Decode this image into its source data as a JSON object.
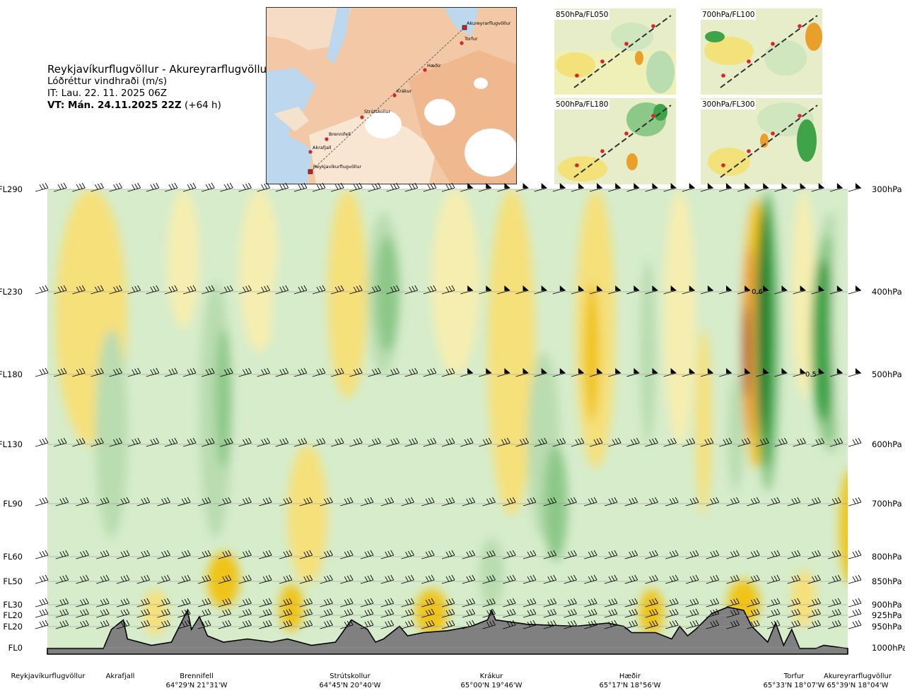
{
  "header": {
    "route": "Reykjavíkurflugvöllur - Akureyrarflugvöllur",
    "variable": "Lóðréttur vindhraði (m/s)",
    "issue_time": "IT: Lau. 22. 11. 2025 06Z",
    "valid_time": "VT: Mán. 24.11.2025 22Z",
    "lead_time": "(+64 h)"
  },
  "map": {
    "stations": [
      "Akureyrarflugvöllur",
      "Torfur",
      "Hæðir",
      "Krákur",
      "Strútskollur",
      "Brennifell",
      "Akrafjall",
      "Reykjavíkurflugvöllur"
    ]
  },
  "thumbnails": [
    {
      "label": "850hPa/FL050"
    },
    {
      "label": "700hPa/FL100"
    },
    {
      "label": "500hPa/FL180"
    },
    {
      "label": "300hPa/FL300"
    }
  ],
  "chart_data": {
    "type": "heatmap",
    "title": "Reykjavíkurflugvöllur - Akureyrarflugvöllur",
    "subtitle": "Lóðréttur vindhraði (m/s)",
    "x": [
      0,
      0.084,
      0.19,
      0.38,
      0.55,
      0.74,
      0.96,
      1.0
    ],
    "x_note": "fraction of route distance",
    "waypoints": [
      {
        "name": "Reykjavíkurflugvöllur",
        "coord": "",
        "x": 0.0
      },
      {
        "name": "Akrafjall",
        "coord": "",
        "x": 0.084
      },
      {
        "name": "Brennifell",
        "coord": "64°29'N 21°31'W",
        "x": 0.19
      },
      {
        "name": "Strútskollur",
        "coord": "64°45'N 20°40'W",
        "x": 0.38
      },
      {
        "name": "Krákur",
        "coord": "65°00'N 19°46'W",
        "x": 0.55
      },
      {
        "name": "Hæðir",
        "coord": "65°17'N 18°56'W",
        "x": 0.74
      },
      {
        "name": "Torfur",
        "coord": "65°33'N 18°07'W",
        "x": 0.96
      },
      {
        "name": "Akureyrarflugvöllur",
        "coord": "65°39'N 18°04'W",
        "x": 1.0
      }
    ],
    "levels": [
      {
        "fl": "FL290",
        "p": "300hPa",
        "hpa": 300,
        "ft": 29000
      },
      {
        "fl": "FL230",
        "p": "400hPa",
        "hpa": 400,
        "ft": 23000
      },
      {
        "fl": "FL180",
        "p": "500hPa",
        "hpa": 500,
        "ft": 18000
      },
      {
        "fl": "FL130",
        "p": "600hPa",
        "hpa": 600,
        "ft": 13000
      },
      {
        "fl": "FL90",
        "p": "700hPa",
        "hpa": 700,
        "ft": 9000
      },
      {
        "fl": "FL60",
        "p": "800hPa",
        "hpa": 800,
        "ft": 6000
      },
      {
        "fl": "FL50",
        "p": "850hPa",
        "hpa": 850,
        "ft": 5000
      },
      {
        "fl": "FL30",
        "p": "900hPa",
        "hpa": 900,
        "ft": 3000
      },
      {
        "fl": "FL20",
        "p": "925hPa",
        "hpa": 925,
        "ft": 2000
      },
      {
        "fl": "FL20",
        "p": "950hPa",
        "hpa": 950,
        "ft": 2000
      },
      {
        "fl": "FL0",
        "p": "1000hPa",
        "hpa": 1000,
        "ft": 0
      }
    ],
    "annotations": [
      {
        "text": "0.6",
        "x": 0.887,
        "level_hpa": 400
      },
      {
        "text": "0.5",
        "x": 0.954,
        "level_hpa": 500
      }
    ],
    "colormap": [
      {
        "value": -0.6,
        "color": "#b5651d"
      },
      {
        "value": -0.4,
        "color": "#e8a02a"
      },
      {
        "value": -0.2,
        "color": "#f0c419"
      },
      {
        "value": -0.1,
        "color": "#f6e07a"
      },
      {
        "value": -0.05,
        "color": "#f6eeb0"
      },
      {
        "value": 0.0,
        "color": "#f4f8e4"
      },
      {
        "value": 0.05,
        "color": "#d6eccb"
      },
      {
        "value": 0.1,
        "color": "#b9dcb0"
      },
      {
        "value": 0.2,
        "color": "#8cc888"
      },
      {
        "value": 0.4,
        "color": "#3fa34a"
      },
      {
        "value": 0.6,
        "color": "#0b7a22"
      }
    ]
  }
}
